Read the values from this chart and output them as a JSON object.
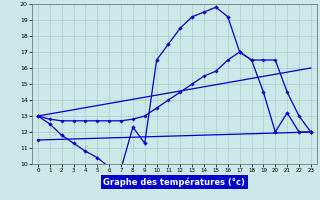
{
  "xlabel": "Graphe des températures (°c)",
  "background_color": "#cce8e8",
  "line_color": "#0000cc",
  "grid_color": "#aacccc",
  "xlim": [
    -0.5,
    23.5
  ],
  "ylim": [
    10,
    20
  ],
  "x_ticks": [
    0,
    1,
    2,
    3,
    4,
    5,
    6,
    7,
    8,
    9,
    10,
    11,
    12,
    13,
    14,
    15,
    16,
    17,
    18,
    19,
    20,
    21,
    22,
    23
  ],
  "y_ticks": [
    10,
    11,
    12,
    13,
    14,
    15,
    16,
    17,
    18,
    19,
    20
  ],
  "temp_hours": [
    0,
    1,
    2,
    3,
    4,
    5,
    6,
    7,
    8,
    9,
    10,
    11,
    12,
    13,
    14,
    15,
    16,
    17,
    18,
    19,
    20,
    21,
    22,
    23
  ],
  "temp_values": [
    13.0,
    12.5,
    11.8,
    11.3,
    10.8,
    10.4,
    9.8,
    9.7,
    12.3,
    11.3,
    16.5,
    17.5,
    18.5,
    19.2,
    19.5,
    19.8,
    19.2,
    17.0,
    16.5,
    14.5,
    12.0,
    13.2,
    12.0,
    12.0
  ],
  "min_hours": [
    0,
    23
  ],
  "min_values": [
    11.5,
    12.0
  ],
  "max_hours": [
    0,
    1,
    2,
    3,
    4,
    5,
    6,
    7,
    8,
    9,
    10,
    11,
    12,
    13,
    14,
    15,
    16,
    17,
    18,
    19,
    20,
    21,
    22,
    23
  ],
  "max_values": [
    13.0,
    12.8,
    12.7,
    12.7,
    12.7,
    12.7,
    12.7,
    12.7,
    12.8,
    13.0,
    13.5,
    14.0,
    14.5,
    15.0,
    15.5,
    15.8,
    16.5,
    17.0,
    16.5,
    16.5,
    16.5,
    14.5,
    13.0,
    12.0
  ],
  "mean_hours": [
    0,
    23
  ],
  "mean_values": [
    13.0,
    16.0
  ]
}
